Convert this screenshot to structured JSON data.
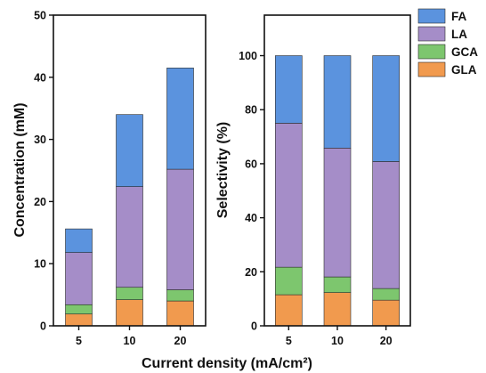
{
  "chart_data": [
    {
      "type": "bar",
      "stacked": true,
      "categories": [
        "5",
        "10",
        "20"
      ],
      "ylabel": "Concentration (mM)",
      "ylim": [
        0,
        50
      ],
      "yticks": [
        0,
        10,
        20,
        30,
        40,
        50
      ],
      "series": [
        {
          "name": "GLA",
          "color": "#F19A4E",
          "values": [
            1.9,
            4.2,
            4.0
          ]
        },
        {
          "name": "GCA",
          "color": "#7DC66E",
          "values": [
            1.5,
            2.0,
            1.8
          ]
        },
        {
          "name": "LA",
          "color": "#A58DC8",
          "values": [
            8.4,
            16.2,
            19.4
          ]
        },
        {
          "name": "FA",
          "color": "#5B93DE",
          "values": [
            3.8,
            11.6,
            16.3
          ]
        }
      ]
    },
    {
      "type": "bar",
      "stacked": true,
      "categories": [
        "5",
        "10",
        "20"
      ],
      "ylabel": "Selectivity (%)",
      "ylim": [
        0,
        115
      ],
      "yticks": [
        0,
        20,
        40,
        60,
        80,
        100
      ],
      "series": [
        {
          "name": "GLA",
          "color": "#F19A4E",
          "values": [
            11.5,
            12.3,
            9.5
          ]
        },
        {
          "name": "GCA",
          "color": "#7DC66E",
          "values": [
            10.2,
            5.8,
            4.3
          ]
        },
        {
          "name": "LA",
          "color": "#A58DC8",
          "values": [
            53.3,
            47.7,
            47.0
          ]
        },
        {
          "name": "FA",
          "color": "#5B93DE",
          "values": [
            25.0,
            34.2,
            39.2
          ]
        }
      ]
    }
  ],
  "shared_xlabel": "Current density (mA/cm²)",
  "legend": [
    {
      "name": "FA",
      "color": "#5B93DE"
    },
    {
      "name": "LA",
      "color": "#A58DC8"
    },
    {
      "name": "GCA",
      "color": "#7DC66E"
    },
    {
      "name": "GLA",
      "color": "#F19A4E"
    }
  ]
}
